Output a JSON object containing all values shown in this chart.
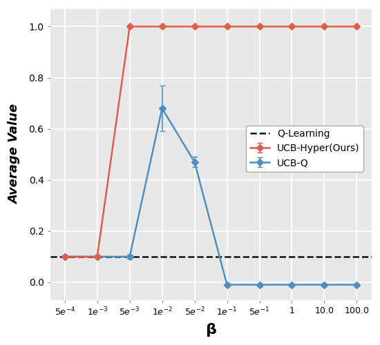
{
  "beta_values": [
    0.0005,
    0.001,
    0.005,
    0.01,
    0.05,
    0.1,
    0.5,
    1.0,
    10.0,
    100.0
  ],
  "ucb_hyper_mean": [
    0.1,
    0.1,
    1.0,
    1.0,
    1.0,
    1.0,
    1.0,
    1.0,
    1.0,
    1.0
  ],
  "ucb_hyper_err": [
    0.005,
    0.005,
    0.005,
    0.005,
    0.005,
    0.005,
    0.005,
    0.005,
    0.005,
    0.005
  ],
  "ucb_q_mean": [
    0.1,
    0.1,
    0.1,
    0.68,
    0.47,
    -0.01,
    -0.01,
    -0.01,
    -0.01,
    -0.01
  ],
  "ucb_q_err": [
    0.005,
    0.005,
    0.008,
    0.09,
    0.02,
    0.005,
    0.005,
    0.005,
    0.005,
    0.005
  ],
  "q_learning_value": 0.1,
  "hyper_color": "#E05C4B",
  "ucbq_color": "#4F8FC0",
  "q_learning_color": "#111111",
  "bg_color": "#E8E8E8",
  "ylabel": "Average Value",
  "xlabel": "β",
  "ylim": [
    -0.07,
    1.07
  ],
  "legend_labels": [
    "Q-Learning",
    "UCB-Hyper(Ours)",
    "UCB-Q"
  ],
  "tick_labels": [
    "$5e^{-4}$",
    "$1e^{-3}$",
    "$5e^{-3}$",
    "$1e^{-2}$",
    "$5e^{-2}$",
    "$1e^{-1}$",
    "$5e^{-1}$",
    "$1$",
    "$10.0$",
    "$100.0$"
  ],
  "ytick_labels": [
    "0.0",
    "0.2",
    "0.4",
    "0.6",
    "0.8",
    "1.0"
  ],
  "ytick_values": [
    0.0,
    0.2,
    0.4,
    0.6,
    0.8,
    1.0
  ]
}
